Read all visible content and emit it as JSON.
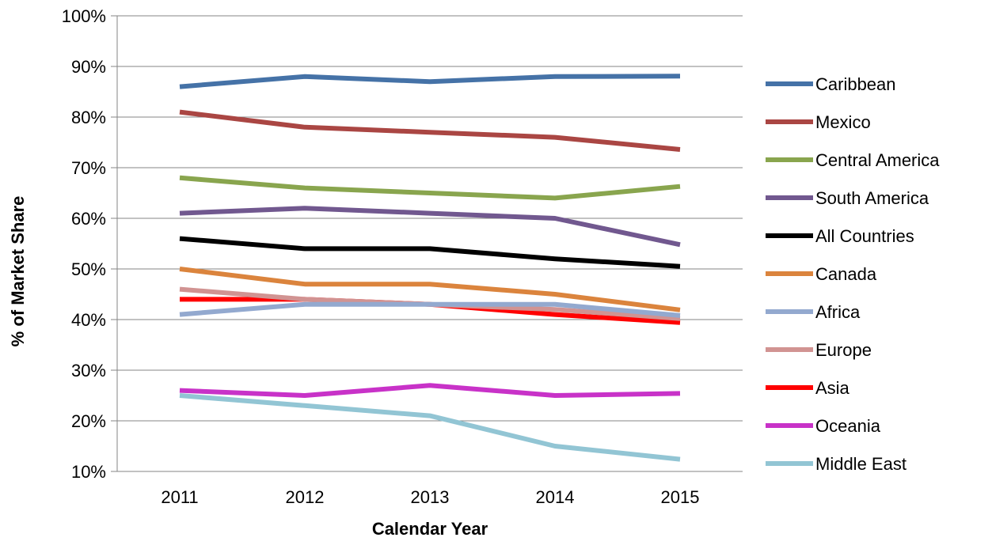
{
  "chart_data": {
    "type": "line",
    "title": "",
    "xlabel": "Calendar Year",
    "ylabel": "% of Market Share",
    "categories": [
      "2011",
      "2012",
      "2013",
      "2014",
      "2015"
    ],
    "ylim": [
      10,
      100
    ],
    "y_ticks": [
      10,
      20,
      30,
      40,
      50,
      60,
      70,
      80,
      90,
      100
    ],
    "y_tick_labels": [
      "10%",
      "20%",
      "30%",
      "40%",
      "50%",
      "60%",
      "70%",
      "80%",
      "90%",
      "100%"
    ],
    "grid": "horizontal",
    "legend_position": "right",
    "series": [
      {
        "name": "Caribbean",
        "color": "#4572A7",
        "values": [
          86,
          88,
          87,
          88,
          88.1
        ]
      },
      {
        "name": "Mexico",
        "color": "#AA4643",
        "values": [
          81,
          78,
          77,
          76,
          73.6
        ]
      },
      {
        "name": "Central America",
        "color": "#89A54E",
        "values": [
          68,
          66,
          65,
          64,
          66.3
        ]
      },
      {
        "name": "South America",
        "color": "#71588F",
        "values": [
          61,
          62,
          61,
          60,
          54.8
        ]
      },
      {
        "name": "All Countries",
        "color": "#000000",
        "values": [
          56,
          54,
          54,
          52,
          50.5
        ]
      },
      {
        "name": "Canada",
        "color": "#DB843D",
        "values": [
          50,
          47,
          47,
          45,
          41.9
        ]
      },
      {
        "name": "Africa",
        "color": "#93A9CF",
        "values": [
          41,
          43,
          43,
          43,
          40.8
        ]
      },
      {
        "name": "Europe",
        "color": "#D19392",
        "values": [
          46,
          44,
          43,
          42,
          40.2
        ]
      },
      {
        "name": "Asia",
        "color": "#FF0000",
        "values": [
          44,
          44,
          43,
          41,
          39.4
        ]
      },
      {
        "name": "Oceania",
        "color": "#C832C8",
        "values": [
          26,
          25,
          27,
          25,
          25.4
        ]
      },
      {
        "name": "Middle East",
        "color": "#92C5D4",
        "values": [
          25,
          23,
          21,
          15,
          12.4
        ]
      }
    ]
  }
}
